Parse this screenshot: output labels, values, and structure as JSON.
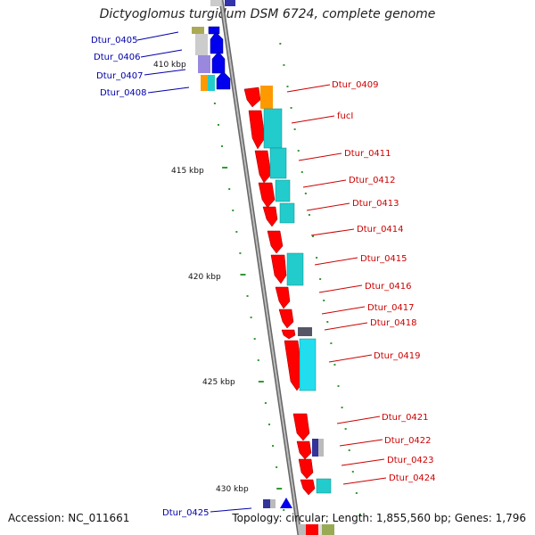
{
  "title": "Dictyoglomus turgidum DSM 6724, complete genome",
  "accession": "Accession: NC_011661",
  "topology": "Topology: circular; Length: 1,855,560 bp; Genes: 1,796",
  "colors": {
    "backbone": "#888888",
    "tick": "#339933",
    "left_label": "#0000aa",
    "right_label": "#cc0000",
    "gene_red": "#ff0000",
    "gene_blue": "#0000ee",
    "cog_cyan": "#22cccc",
    "cog_orange": "#ff9900",
    "cog_purple": "#9988dd",
    "cog_olive": "#aaaa55",
    "cog_gray": "#bbbbbb",
    "cog_navy": "#333399"
  },
  "scale_labels": [
    "410 kbp",
    "415 kbp",
    "420 kbp",
    "425 kbp",
    "430 kbp"
  ],
  "left_genes": [
    "Dtur_0405",
    "Dtur_0406",
    "Dtur_0407",
    "Dtur_0408",
    "Dtur_0425"
  ],
  "right_genes": [
    "Dtur_0409",
    "fucI",
    "Dtur_0411",
    "Dtur_0412",
    "Dtur_0413",
    "Dtur_0414",
    "Dtur_0415",
    "Dtur_0416",
    "Dtur_0417",
    "Dtur_0418",
    "Dtur_0419",
    "Dtur_0421",
    "Dtur_0422",
    "Dtur_0423",
    "Dtur_0424"
  ]
}
